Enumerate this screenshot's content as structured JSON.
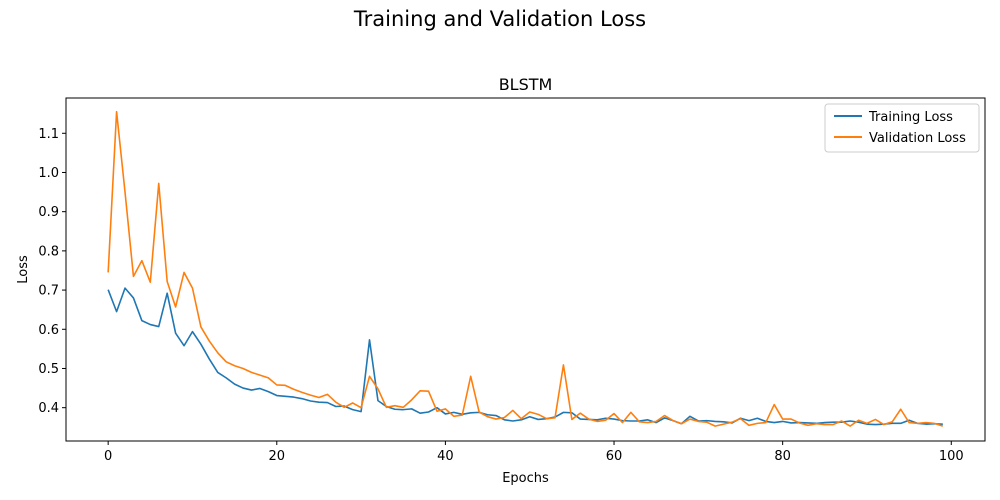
{
  "figure": {
    "suptitle": "Training and Validation Loss"
  },
  "chart_data": {
    "type": "line",
    "title": "BLSTM",
    "xlabel": "Epochs",
    "ylabel": "Loss",
    "xlim": [
      -5,
      104
    ],
    "ylim": [
      0.315,
      1.19
    ],
    "x_ticks": [
      0,
      20,
      40,
      60,
      80,
      100
    ],
    "y_ticks": [
      0.4,
      0.5,
      0.6,
      0.7,
      0.8,
      0.9,
      1.0,
      1.1
    ],
    "grid": false,
    "legend_position": "top-right",
    "series": [
      {
        "name": "Training Loss",
        "color": "#1f77b4",
        "values": [
          0.701,
          0.645,
          0.705,
          0.68,
          0.622,
          0.612,
          0.607,
          0.692,
          0.59,
          0.558,
          0.594,
          0.562,
          0.524,
          0.49,
          0.476,
          0.46,
          0.45,
          0.445,
          0.449,
          0.441,
          0.431,
          0.429,
          0.427,
          0.423,
          0.417,
          0.414,
          0.413,
          0.403,
          0.404,
          0.395,
          0.39,
          0.573,
          0.418,
          0.403,
          0.396,
          0.395,
          0.397,
          0.386,
          0.389,
          0.4,
          0.384,
          0.388,
          0.383,
          0.387,
          0.388,
          0.382,
          0.38,
          0.369,
          0.366,
          0.369,
          0.377,
          0.37,
          0.372,
          0.376,
          0.388,
          0.387,
          0.371,
          0.37,
          0.369,
          0.373,
          0.371,
          0.367,
          0.366,
          0.366,
          0.369,
          0.362,
          0.374,
          0.367,
          0.359,
          0.378,
          0.366,
          0.367,
          0.365,
          0.364,
          0.361,
          0.373,
          0.367,
          0.373,
          0.365,
          0.362,
          0.365,
          0.361,
          0.362,
          0.361,
          0.36,
          0.362,
          0.363,
          0.363,
          0.366,
          0.363,
          0.358,
          0.357,
          0.358,
          0.36,
          0.36,
          0.368,
          0.36,
          0.358,
          0.359,
          0.358
        ]
      },
      {
        "name": "Validation Loss",
        "color": "#ff7f0e",
        "values": [
          0.745,
          1.155,
          0.95,
          0.735,
          0.775,
          0.72,
          0.972,
          0.722,
          0.657,
          0.745,
          0.705,
          0.606,
          0.57,
          0.54,
          0.517,
          0.507,
          0.5,
          0.49,
          0.483,
          0.476,
          0.458,
          0.457,
          0.447,
          0.439,
          0.432,
          0.426,
          0.434,
          0.414,
          0.401,
          0.412,
          0.4,
          0.48,
          0.448,
          0.401,
          0.405,
          0.401,
          0.42,
          0.443,
          0.442,
          0.391,
          0.397,
          0.378,
          0.381,
          0.48,
          0.389,
          0.377,
          0.371,
          0.375,
          0.393,
          0.372,
          0.389,
          0.383,
          0.372,
          0.374,
          0.509,
          0.37,
          0.386,
          0.371,
          0.365,
          0.368,
          0.385,
          0.362,
          0.388,
          0.364,
          0.362,
          0.365,
          0.38,
          0.367,
          0.359,
          0.371,
          0.365,
          0.363,
          0.353,
          0.358,
          0.363,
          0.372,
          0.355,
          0.36,
          0.362,
          0.408,
          0.371,
          0.371,
          0.361,
          0.355,
          0.359,
          0.357,
          0.357,
          0.366,
          0.353,
          0.368,
          0.36,
          0.37,
          0.357,
          0.364,
          0.396,
          0.362,
          0.36,
          0.362,
          0.36,
          0.353
        ]
      }
    ]
  }
}
